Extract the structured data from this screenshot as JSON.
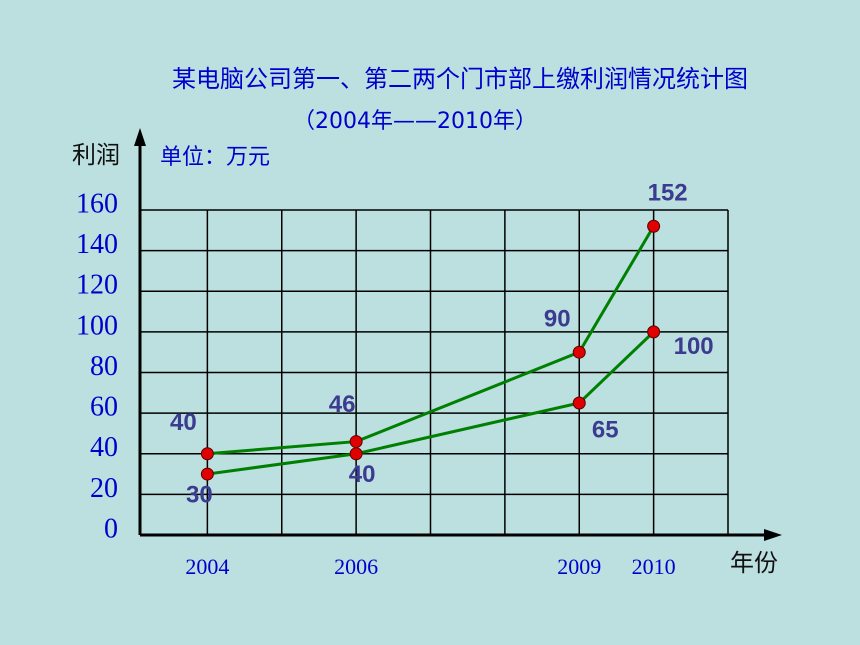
{
  "chart_data": {
    "type": "line",
    "title": "某电脑公司第一、第二两个门市部上缴利润情况统计图",
    "subtitle": "（2004年——2010年）",
    "y_axis_label": "利润",
    "unit": "单位：万元",
    "x_axis_label": "年份",
    "x": [
      2004,
      2006,
      2009,
      2010
    ],
    "series": [
      {
        "color": "#008000",
        "values": [
          40,
          46,
          90,
          152
        ]
      },
      {
        "color": "#008000",
        "values": [
          30,
          40,
          65,
          100
        ]
      }
    ],
    "marker_color": "#e00000",
    "label_color": "#3b3b8f",
    "xlim": [
      2003,
      2011
    ],
    "xticks": [
      2004,
      2006,
      2009,
      2010
    ],
    "ylim": [
      0,
      160
    ],
    "yticks": [
      0,
      20,
      40,
      60,
      80,
      100,
      120,
      140,
      160
    ],
    "grid": true
  }
}
